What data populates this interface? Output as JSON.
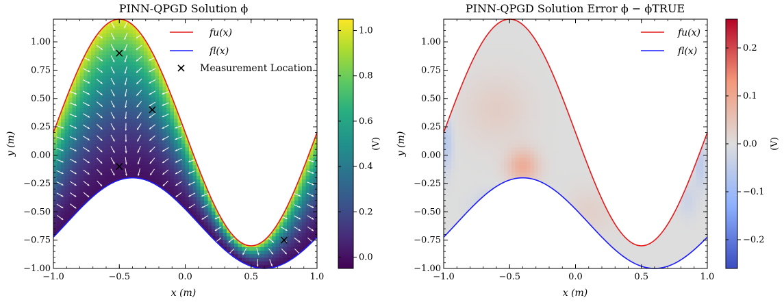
{
  "chart_data": [
    {
      "type": "heatmap",
      "title": "PINN-QPGD Solution ϕ",
      "xlabel": "x (m)",
      "ylabel": "y (m)",
      "xlim": [
        -1.0,
        1.0
      ],
      "ylim": [
        -1.0,
        1.2
      ],
      "x_ticks": [
        "−1.0",
        "−0.5",
        "0.0",
        "0.5",
        "1.0"
      ],
      "y_ticks": [
        "−1.00",
        "−0.75",
        "−0.50",
        "−0.25",
        "0.00",
        "0.25",
        "0.50",
        "0.75",
        "1.00"
      ],
      "colorbar": {
        "label": "(V)",
        "colormap": "viridis",
        "range": [
          -0.05,
          1.05
        ],
        "ticks": [
          "0.0",
          "0.2",
          "0.4",
          "0.6",
          "0.8",
          "1.0"
        ]
      },
      "legend": {
        "placement": "top-right",
        "entries": [
          {
            "label": "fu(x)",
            "color": "#e41a1c",
            "kind": "line"
          },
          {
            "label": "fl(x)",
            "color": "#1a1aff",
            "kind": "line"
          },
          {
            "label": "Measurement Location",
            "color": "#000000",
            "kind": "marker"
          }
        ]
      },
      "measurement_points": [
        {
          "x": -0.5,
          "y": 0.9
        },
        {
          "x": -0.25,
          "y": 0.4
        },
        {
          "x": -0.5,
          "y": -0.1
        },
        {
          "x": 0.75,
          "y": -0.75
        }
      ]
    },
    {
      "type": "heatmap",
      "title": "PINN-QPGD Solution Error ϕ − ϕTRUE",
      "xlabel": "x (m)",
      "ylabel": "y (m)",
      "xlim": [
        -1.0,
        1.0
      ],
      "ylim": [
        -1.0,
        1.2
      ],
      "x_ticks": [
        "−1.0",
        "−0.5",
        "0.0",
        "0.5",
        "1.0"
      ],
      "y_ticks": [
        "−1.00",
        "−0.75",
        "−0.50",
        "−0.25",
        "0.00",
        "0.25",
        "0.50",
        "0.75",
        "1.00"
      ],
      "colorbar": {
        "label": "(V)",
        "colormap": "coolwarm",
        "range": [
          -0.26,
          0.26
        ],
        "ticks": [
          "−0.2",
          "−0.1",
          "0.0",
          "0.1",
          "0.2"
        ]
      },
      "legend": {
        "placement": "top-right",
        "entries": [
          {
            "label": "fu(x)",
            "color": "#e41a1c",
            "kind": "line"
          },
          {
            "label": "fl(x)",
            "color": "#1a1aff",
            "kind": "line"
          }
        ]
      }
    }
  ]
}
